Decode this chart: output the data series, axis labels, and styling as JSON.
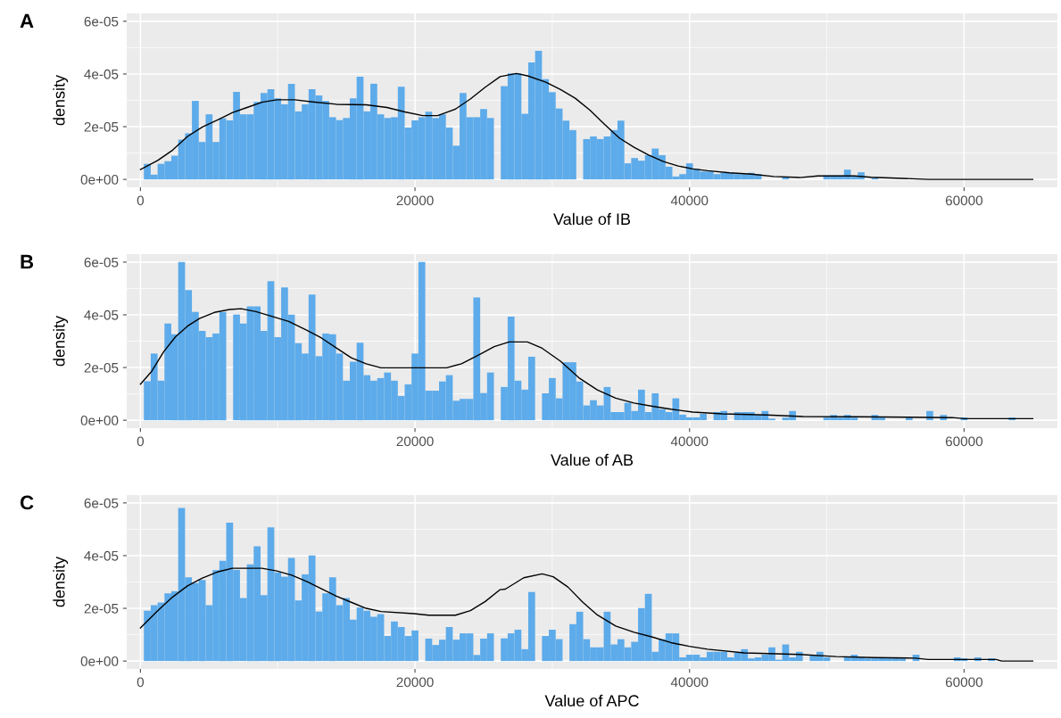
{
  "chart_data": [
    {
      "type": "histogram",
      "xlabel": "Value of IB",
      "ylabel": "density",
      "annotations": [
        "A"
      ],
      "grid": true,
      "legend": false,
      "xlim": [
        -1000,
        66800
      ],
      "ylim": [
        -3e-06,
        6.3e-05
      ],
      "xticks": [
        0,
        20000,
        40000,
        60000
      ],
      "yticks": [
        {
          "value": 0,
          "label": "0e+00"
        },
        {
          "value": 2e-05,
          "label": "2e-05"
        },
        {
          "value": 4e-05,
          "label": "4e-05"
        },
        {
          "value": 6e-05,
          "label": "6e-05"
        }
      ],
      "bins": [
        250,
        750,
        1250,
        1750,
        2250,
        2750,
        3250,
        3750,
        4250,
        4750,
        5250,
        5750,
        6250,
        6750,
        7250,
        7750,
        8250,
        8750,
        9250,
        9750,
        10250,
        10750,
        11250,
        11750,
        12250,
        12750,
        13250,
        13750,
        14250,
        14750,
        15250,
        15750,
        16250,
        16750,
        17250,
        17750,
        18250,
        18750,
        19250,
        19750,
        20250,
        20750,
        21250,
        21750,
        22250,
        22750,
        23250,
        23750,
        24250,
        24750,
        25250,
        25750,
        26250,
        26750,
        27250,
        27750,
        28250,
        28750,
        29250,
        29750,
        30250,
        30750,
        31250,
        31750,
        32250,
        32750,
        33250,
        33750,
        34250,
        34750,
        35250,
        35750,
        36250,
        36750,
        37250,
        37750,
        38250,
        38750,
        39250,
        39750,
        40250,
        40750,
        41250,
        41750,
        42250,
        42750,
        43250,
        43750,
        44250,
        44750,
        45250,
        45750,
        46250,
        46750,
        47250,
        47750,
        48250,
        48750,
        49250,
        49750,
        50250,
        50750,
        51250,
        51750,
        52250,
        52750,
        53250,
        53750,
        54250,
        54750,
        55250,
        55750,
        56250,
        56750,
        57250,
        57750,
        58250,
        58750,
        59250,
        59750,
        60250,
        60750,
        61250,
        61750,
        62250,
        62750,
        63250,
        63750,
        64250
      ],
      "series": [
        {
          "type": "histogram",
          "color": "#5dabea",
          "values": [
            5.9e-06,
            1.8e-06,
            5.9e-06,
            6.9e-06,
            9e-06,
            1.51e-05,
            1.75e-05,
            2.98e-05,
            1.42e-05,
            2.47e-05,
            1.42e-05,
            2.32e-05,
            2.24e-05,
            3.32e-05,
            2.47e-05,
            2.47e-05,
            2.94e-05,
            3.28e-05,
            3.42e-05,
            3.08e-05,
            2.85e-05,
            3.63e-05,
            2.58e-05,
            2.85e-05,
            3.42e-05,
            3.19e-05,
            2.98e-05,
            2.36e-05,
            2.25e-05,
            2.33e-05,
            3.08e-05,
            3.9e-05,
            2.58e-05,
            3.63e-05,
            2.47e-05,
            2.33e-05,
            2.36e-05,
            3.52e-05,
            1.97e-05,
            2.24e-05,
            2.36e-05,
            2.57e-05,
            2.33e-05,
            2.47e-05,
            1.97e-05,
            1.28e-05,
            3.28e-05,
            2.36e-05,
            2.36e-05,
            2.67e-05,
            2.33e-05,
            0,
            3.54e-05,
            4.02e-05,
            4.02e-05,
            2.49e-05,
            4.44e-05,
            4.88e-05,
            3.8e-05,
            3.31e-05,
            2.69e-05,
            2.23e-05,
            1.87e-05,
            0,
            1.53e-05,
            1.63e-05,
            1.53e-05,
            1.63e-05,
            1.87e-05,
            2.23e-05,
            6.1e-06,
            8.1e-06,
            7.1e-06,
            9.2e-06,
            1.17e-05,
            9.2e-06,
            4.8e-06,
            1.1e-06,
            2e-06,
            6.1e-06,
            4e-06,
            3e-06,
            3e-06,
            2e-06,
            2.5e-06,
            2.5e-06,
            2e-06,
            2e-06,
            2.5e-06,
            2e-06,
            0,
            0,
            0,
            8e-07,
            0,
            0,
            0,
            0,
            0,
            1.5e-06,
            1.5e-06,
            1.5e-06,
            3.7e-06,
            1e-06,
            2.7e-06,
            0,
            6e-07,
            0,
            0,
            0,
            0,
            0,
            0,
            0,
            0,
            0,
            0,
            0,
            0,
            0,
            0,
            0,
            0,
            0,
            0,
            0,
            0,
            0
          ]
        },
        {
          "type": "line",
          "color": "#000000",
          "x": [
            0,
            1258,
            2343,
            3427,
            4512,
            5597,
            6681,
            7766,
            8850,
            9935,
            11236,
            12538,
            14273,
            16443,
            17961,
            19262,
            20564,
            21649,
            22950,
            24035,
            25119,
            26204,
            27390,
            28193,
            29532,
            30602,
            31673,
            32744,
            33815,
            34886,
            35957,
            37028,
            38099,
            39170,
            40241,
            41312,
            42918,
            44525,
            46131,
            48005,
            49344,
            52021,
            53226,
            55502,
            57376,
            65000
          ],
          "values": [
            3.75e-06,
            7.2e-06,
            1.11e-05,
            1.63e-05,
            1.99e-05,
            2.25e-05,
            2.53e-05,
            2.73e-05,
            2.93e-05,
            3.02e-05,
            3.02e-05,
            2.94e-05,
            2.85e-05,
            2.83e-05,
            2.73e-05,
            2.56e-05,
            2.42e-05,
            2.42e-05,
            2.67e-05,
            3.05e-05,
            3.5e-05,
            3.9e-05,
            4.02e-05,
            3.93e-05,
            3.69e-05,
            3.41e-05,
            3.08e-05,
            2.63e-05,
            2.09e-05,
            1.57e-05,
            1.22e-05,
            9.2e-06,
            6.8e-06,
            5.1e-06,
            4e-06,
            3.3e-06,
            2.5e-06,
            2e-06,
            1.1e-06,
            7e-07,
            1.3e-06,
            1.3e-06,
            8e-07,
            4e-07,
            0,
            0
          ]
        }
      ]
    },
    {
      "type": "histogram",
      "xlabel": "Value of AB",
      "ylabel": "density",
      "annotations": [
        "B"
      ],
      "grid": true,
      "legend": false,
      "xlim": [
        -1000,
        66800
      ],
      "ylim": [
        -3e-06,
        6.3e-05
      ],
      "xticks": [
        0,
        20000,
        40000,
        60000
      ],
      "yticks": [
        {
          "value": 0,
          "label": "0e+00"
        },
        {
          "value": 2e-05,
          "label": "2e-05"
        },
        {
          "value": 4e-05,
          "label": "4e-05"
        },
        {
          "value": 6e-05,
          "label": "6e-05"
        }
      ],
      "bins": [
        250,
        750,
        1250,
        1750,
        2250,
        2750,
        3250,
        3750,
        4250,
        4750,
        5250,
        5750,
        6250,
        6750,
        7250,
        7750,
        8250,
        8750,
        9250,
        9750,
        10250,
        10750,
        11250,
        11750,
        12250,
        12750,
        13250,
        13750,
        14250,
        14750,
        15250,
        15750,
        16250,
        16750,
        17250,
        17750,
        18250,
        18750,
        19250,
        19750,
        20250,
        20750,
        21250,
        21750,
        22250,
        22750,
        23250,
        23750,
        24250,
        24750,
        25250,
        25750,
        26250,
        26750,
        27250,
        27750,
        28250,
        28750,
        29250,
        29750,
        30250,
        30750,
        31250,
        31750,
        32250,
        32750,
        33250,
        33750,
        34250,
        34750,
        35250,
        35750,
        36250,
        36750,
        37250,
        37750,
        38250,
        38750,
        39250,
        39750,
        40250,
        40750,
        41250,
        41750,
        42250,
        42750,
        43250,
        43750,
        44250,
        44750,
        45250,
        45750,
        46250,
        46750,
        47250,
        47750,
        48250,
        48750,
        49250,
        49750,
        50250,
        50750,
        51250,
        51750,
        52250,
        52750,
        53250,
        53750,
        54250,
        54750,
        55250,
        55750,
        56250,
        56750,
        57250,
        57750,
        58250,
        58750,
        59250,
        59750,
        60250,
        60750,
        61250,
        61750,
        62250,
        62750,
        63250,
        63750,
        64250
      ],
      "series": [
        {
          "type": "histogram",
          "color": "#5dabea",
          "values": [
            1.48e-05,
            2.53e-05,
            1.5e-05,
            3.67e-05,
            3.26e-05,
            6e-05,
            4.94e-05,
            4.11e-05,
            3.39e-05,
            3.15e-05,
            3.29e-05,
            4.11e-05,
            0,
            4.01e-05,
            3.67e-05,
            4.32e-05,
            4.32e-05,
            3.39e-05,
            5.28e-05,
            3.15e-05,
            5.04e-05,
            4.01e-05,
            2.92e-05,
            2.53e-05,
            4.77e-05,
            2.43e-05,
            3.29e-05,
            3.26e-05,
            2.53e-05,
            1.5e-05,
            2.22e-05,
            2.94e-05,
            1.71e-05,
            1.5e-05,
            1.6e-05,
            1.81e-05,
            1.5e-05,
            9.2e-06,
            1.36e-05,
            2.53e-05,
            6e-05,
            1.12e-05,
            1.12e-05,
            1.47e-05,
            1.71e-05,
            7.4e-06,
            8.1e-06,
            8.1e-06,
            4.66e-05,
            1.03e-05,
            1.81e-05,
            0,
            1.26e-05,
            3.93e-05,
            1.5e-05,
            1.16e-05,
            2.41e-05,
            0,
            1.02e-05,
            1.6e-05,
            8.3e-06,
            2.2e-05,
            2.2e-05,
            1.47e-05,
            5.6e-06,
            7.6e-06,
            5.6e-06,
            1.26e-05,
            3.1e-06,
            3.1e-06,
            6.6e-06,
            3.5e-06,
            1.16e-05,
            3.1e-06,
            1.02e-05,
            4.2e-06,
            3.1e-06,
            8.3e-06,
            2.1e-06,
            1.1e-06,
            1.1e-06,
            2.4e-06,
            0,
            3.1e-06,
            3.5e-06,
            0,
            3.1e-06,
            3.1e-06,
            3.1e-06,
            2e-06,
            3.5e-06,
            6e-07,
            0,
            1e-06,
            3.5e-06,
            0,
            0,
            0,
            0,
            1e-06,
            2e-06,
            1e-06,
            2e-06,
            1e-06,
            0,
            0,
            2e-06,
            1e-06,
            0,
            0,
            0,
            1e-06,
            0,
            0,
            3.5e-06,
            0,
            2e-06,
            0,
            0,
            1e-06,
            0,
            0,
            0,
            0,
            0,
            0,
            1e-06,
            0
          ]
        },
        {
          "type": "line",
          "color": "#000000",
          "x": [
            0,
            824,
            1692,
            2560,
            3427,
            4295,
            5380,
            6464,
            7332,
            8417,
            9501,
            10803,
            12104,
            13189,
            14273,
            15358,
            16443,
            17527,
            22299,
            23384,
            24685,
            25770,
            26854,
            28193,
            29264,
            30602,
            31941,
            33280,
            34618,
            35957,
            37296,
            38635,
            40241,
            42383,
            45596,
            48273,
            52021,
            59116,
            60054,
            65000
          ],
          "values": [
            1.37e-05,
            1.86e-05,
            2.6e-05,
            3.17e-05,
            3.57e-05,
            3.86e-05,
            4.09e-05,
            4.2e-05,
            4.23e-05,
            4.12e-05,
            3.95e-05,
            3.75e-05,
            3.42e-05,
            3.12e-05,
            2.74e-05,
            2.37e-05,
            2.14e-05,
            1.99e-05,
            1.99e-05,
            2.14e-05,
            2.49e-05,
            2.79e-05,
            2.97e-05,
            2.97e-05,
            2.73e-05,
            2.24e-05,
            1.61e-05,
            1.15e-05,
            8.4e-06,
            6.5e-06,
            5.3e-06,
            4.2e-06,
            3.1e-06,
            2.4e-06,
            2e-06,
            1.4e-06,
            1.3e-06,
            1e-06,
            6e-07,
            6e-07
          ]
        }
      ]
    },
    {
      "type": "histogram",
      "xlabel": "Value of APC",
      "ylabel": "density",
      "annotations": [
        "C"
      ],
      "grid": true,
      "legend": false,
      "xlim": [
        -1000,
        66800
      ],
      "ylim": [
        -3e-06,
        6.3e-05
      ],
      "xticks": [
        0,
        20000,
        40000,
        60000
      ],
      "yticks": [
        {
          "value": 0,
          "label": "0e+00"
        },
        {
          "value": 2e-05,
          "label": "2e-05"
        },
        {
          "value": 4e-05,
          "label": "4e-05"
        },
        {
          "value": 6e-05,
          "label": "6e-05"
        }
      ],
      "bins": [
        250,
        750,
        1250,
        1750,
        2250,
        2750,
        3250,
        3750,
        4250,
        4750,
        5250,
        5750,
        6250,
        6750,
        7250,
        7750,
        8250,
        8750,
        9250,
        9750,
        10250,
        10750,
        11250,
        11750,
        12250,
        12750,
        13250,
        13750,
        14250,
        14750,
        15250,
        15750,
        16250,
        16750,
        17250,
        17750,
        18250,
        18750,
        19250,
        19750,
        20250,
        20750,
        21250,
        21750,
        22250,
        22750,
        23250,
        23750,
        24250,
        24750,
        25250,
        25750,
        26250,
        26750,
        27250,
        27750,
        28250,
        28750,
        29250,
        29750,
        30250,
        30750,
        31250,
        31750,
        32250,
        32750,
        33250,
        33750,
        34250,
        34750,
        35250,
        35750,
        36250,
        36750,
        37250,
        37750,
        38250,
        38750,
        39250,
        39750,
        40250,
        40750,
        41250,
        41750,
        42250,
        42750,
        43250,
        43750,
        44250,
        44750,
        45250,
        45750,
        46250,
        46750,
        47250,
        47750,
        48250,
        48750,
        49250,
        49750,
        50250,
        50750,
        51250,
        51750,
        52250,
        52750,
        53250,
        53750,
        54250,
        54750,
        55250,
        55750,
        56250,
        56750,
        57250,
        57750,
        58250,
        58750,
        59250,
        59750,
        60250,
        60750,
        61250,
        61750,
        62250,
        62750,
        63250,
        63750,
        64250
      ],
      "series": [
        {
          "type": "histogram",
          "color": "#5dabea",
          "values": [
            1.91e-05,
            2.12e-05,
            2.22e-05,
            2.57e-05,
            2.65e-05,
            5.81e-05,
            3.18e-05,
            2.96e-05,
            3.08e-05,
            2.12e-05,
            3.45e-05,
            3.8e-05,
            5.25e-05,
            3.46e-05,
            2.39e-05,
            3.67e-05,
            4.35e-05,
            2.5e-05,
            5.07e-05,
            3.36e-05,
            3.2e-05,
            3.91e-05,
            2.3e-05,
            3.29e-05,
            4.01e-05,
            1.88e-05,
            2.57e-05,
            3.18e-05,
            2.12e-05,
            2.39e-05,
            1.57e-05,
            2.03e-05,
            1.91e-05,
            1.68e-05,
            1.78e-05,
            9.5e-06,
            1.5e-05,
            1.29e-05,
            9.5e-06,
            1.16e-05,
            0,
            8.5e-06,
            6.1e-06,
            8.1e-06,
            1.29e-05,
            8.1e-06,
            1.05e-05,
            1.05e-05,
            2.3e-06,
            8.5e-06,
            1.05e-05,
            0,
            8.6e-06,
            1.05e-05,
            1.19e-05,
            4.5e-06,
            2.62e-05,
            0,
            9.5e-06,
            1.19e-05,
            8.3e-06,
            0,
            1.4e-05,
            1.87e-05,
            8.3e-06,
            5.2e-06,
            5.2e-06,
            1.87e-05,
            6.3e-06,
            8.3e-06,
            5.2e-06,
            7.3e-06,
            2.01e-05,
            2.55e-05,
            3.5e-06,
            8.3e-06,
            1.05e-05,
            1.05e-05,
            1.4e-06,
            2.4e-06,
            2.4e-06,
            1.4e-06,
            3.5e-06,
            3.5e-06,
            3.5e-06,
            1.4e-06,
            3.1e-06,
            4.5e-06,
            1e-06,
            1.4e-06,
            2.4e-06,
            5.2e-06,
            5e-07,
            6.3e-06,
            1.4e-06,
            3.5e-06,
            0,
            2.1e-06,
            3.5e-06,
            1.4e-06,
            0,
            0,
            1.4e-06,
            2.4e-06,
            1.4e-06,
            1e-06,
            1e-06,
            1.4e-06,
            1e-06,
            1.4e-06,
            1e-06,
            0,
            2.4e-06,
            0,
            0,
            0,
            0,
            0,
            1.4e-06,
            1e-06,
            0,
            1.4e-06,
            0,
            1e-06,
            0,
            0,
            0,
            0
          ]
        },
        {
          "type": "line",
          "color": "#000000",
          "x": [
            0,
            1258,
            2343,
            3427,
            4512,
            5597,
            6681,
            8850,
            9935,
            11020,
            12104,
            13189,
            14273,
            15358,
            16443,
            17527,
            19913,
            20998,
            22950,
            24035,
            25119,
            26204,
            26586,
            27925,
            29264,
            30067,
            31138,
            32209,
            33280,
            34618,
            35957,
            37296,
            38635,
            39973,
            41312,
            43989,
            48005,
            50683,
            53360,
            56440,
            57376,
            62329,
            62731,
            65000
          ],
          "values": [
            1.26e-05,
            1.91e-05,
            2.43e-05,
            2.85e-05,
            3.15e-05,
            3.38e-05,
            3.52e-05,
            3.52e-05,
            3.42e-05,
            3.26e-05,
            3.02e-05,
            2.74e-05,
            2.46e-05,
            2.23e-05,
            2e-05,
            1.88e-05,
            1.8e-05,
            1.74e-05,
            1.74e-05,
            1.91e-05,
            2.26e-05,
            2.71e-05,
            2.73e-05,
            3.16e-05,
            3.31e-05,
            3.2e-05,
            2.81e-05,
            2.24e-05,
            1.75e-05,
            1.33e-05,
            1.09e-05,
            9.1e-06,
            7e-06,
            5.6e-06,
            4.5e-06,
            3.1e-06,
            2.5e-06,
            1.7e-06,
            1.3e-06,
            1.1e-06,
            6e-07,
            6e-07,
            0,
            0
          ]
        }
      ]
    }
  ]
}
